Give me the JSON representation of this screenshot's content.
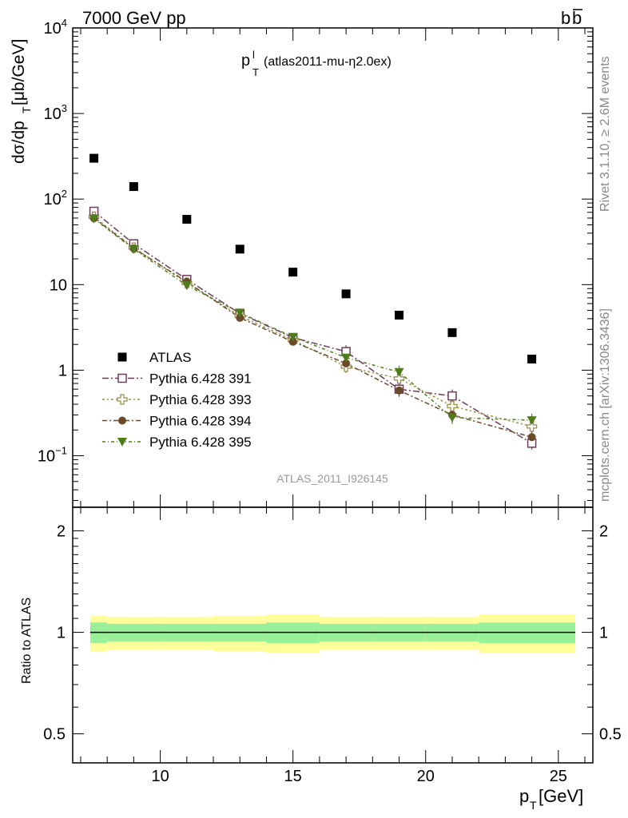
{
  "header": {
    "left": "7000 GeV pp",
    "right_main": "b",
    "right_bar": "b"
  },
  "side": {
    "rivet": "Rivet 3.1.10, ≥ 2.6M events",
    "mcplots": "mcplots.cern.ch [arXiv:1306.3436]"
  },
  "chart_data": {
    "type": "scatter",
    "title": "p",
    "title_sup": "l",
    "title_sub": "T",
    "title_rest": " (atlas2011-mu-η2.0ex)",
    "analysis_id": "ATLAS_2011_I926145",
    "yscale": "log",
    "ylim": [
      0.025,
      10000
    ],
    "xlim": [
      6.7,
      26.3
    ],
    "ylabel_parts": {
      "a": "dσ/dp",
      "sub": "T",
      "b": " [μb/GeV]"
    },
    "xlabel_parts": {
      "a": "p",
      "sub": "T",
      "b": " [GeV]"
    },
    "y_ticks": [
      {
        "v": 0.1,
        "base": "10",
        "exp": "−1"
      },
      {
        "v": 1,
        "label": "1"
      },
      {
        "v": 10,
        "label": "10"
      },
      {
        "v": 100,
        "base": "10",
        "exp": "2"
      },
      {
        "v": 1000,
        "base": "10",
        "exp": "3"
      },
      {
        "v": 10000,
        "base": "10",
        "exp": "4"
      }
    ],
    "x_ticks": [
      10,
      15,
      20,
      25
    ],
    "x_tick_labels": [
      "10",
      "15",
      "20",
      "25"
    ],
    "legend_position": "bottom-left",
    "x": [
      7.5,
      9.0,
      11.0,
      13.0,
      15.0,
      17.0,
      19.0,
      21.0,
      24.0
    ],
    "bin_edges": [
      7,
      8,
      10,
      12,
      14,
      16,
      18,
      20,
      22,
      26
    ],
    "series": [
      {
        "name": "ATLAS",
        "marker": "filled-square",
        "color": "#000000",
        "values": [
          300,
          140,
          58,
          26,
          14,
          7.8,
          4.4,
          2.75,
          1.35
        ]
      },
      {
        "name": "Pythia 6.428 391",
        "marker": "open-square",
        "color": "#6b3d5a",
        "values": [
          72,
          30,
          11.5,
          4.6,
          2.4,
          1.65,
          0.6,
          0.5,
          0.14
        ]
      },
      {
        "name": "Pythia 6.428 393",
        "marker": "open-cross",
        "color": "#9a8f4a",
        "values": [
          62,
          27,
          10.5,
          4.3,
          2.25,
          1.1,
          0.8,
          0.38,
          0.22
        ]
      },
      {
        "name": "Pythia 6.428 394",
        "marker": "filled-circle",
        "color": "#6b4a2a",
        "values": [
          60,
          26.5,
          10.8,
          4.1,
          2.15,
          1.2,
          0.58,
          0.3,
          0.165
        ]
      },
      {
        "name": "Pythia 6.428 395",
        "marker": "filled-triangle-down",
        "color": "#4e7c1a",
        "values": [
          59,
          26,
          9.8,
          4.7,
          2.45,
          1.4,
          0.95,
          0.28,
          0.26
        ]
      }
    ],
    "ratio_panel": {
      "ylabel": "Ratio to ATLAS",
      "yscale": "log",
      "ylim": [
        0.41,
        2.35
      ],
      "y_ticks": [
        0.5,
        1,
        2
      ],
      "y_tick_labels": [
        "0.5",
        "1",
        "2"
      ],
      "band_inner": [
        0.93,
        0.94,
        0.94,
        0.94,
        0.93,
        0.94,
        0.94,
        0.94,
        0.93
      ],
      "band_inner_hi": [
        1.07,
        1.06,
        1.06,
        1.06,
        1.07,
        1.06,
        1.06,
        1.06,
        1.07
      ],
      "band_outer": [
        0.88,
        0.89,
        0.89,
        0.88,
        0.87,
        0.89,
        0.89,
        0.89,
        0.87
      ],
      "band_outer_hi": [
        1.12,
        1.11,
        1.11,
        1.12,
        1.13,
        1.11,
        1.11,
        1.11,
        1.13
      ],
      "colors": {
        "inner": "#99f099",
        "outer": "#ffff99"
      }
    }
  }
}
